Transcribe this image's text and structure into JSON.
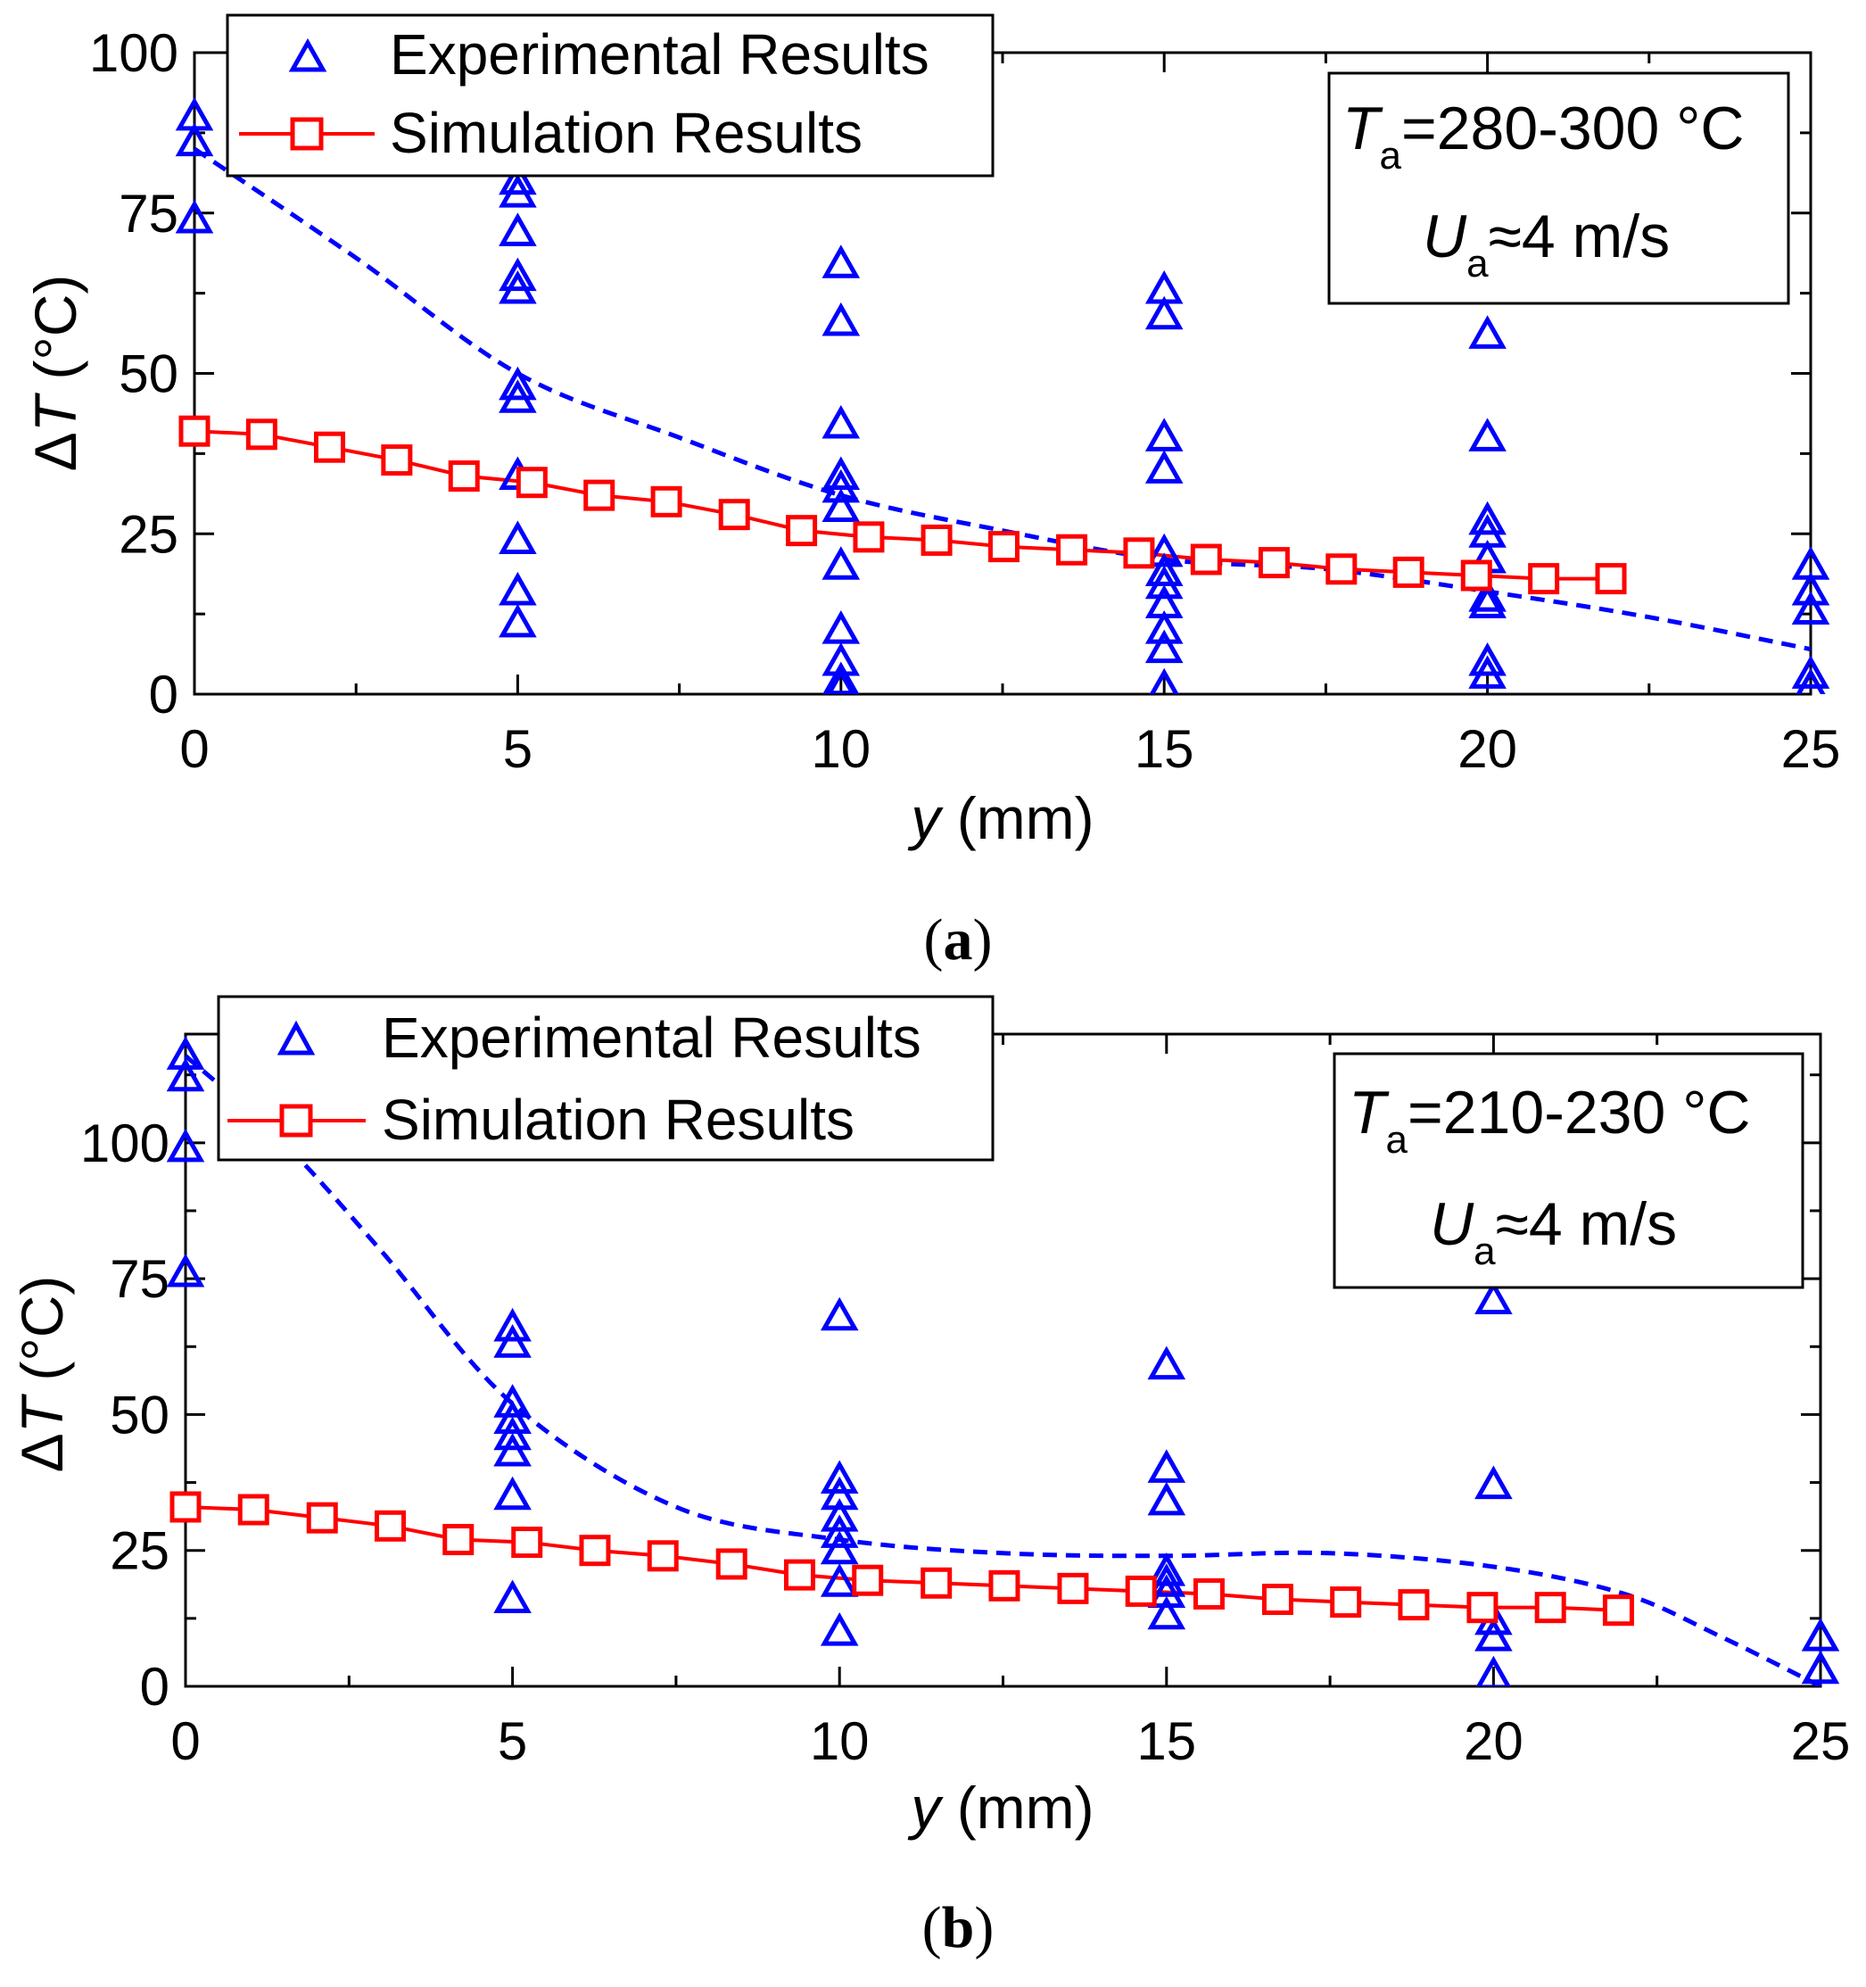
{
  "chart_data": [
    {
      "type": "scatter",
      "panel_label": "(a)",
      "panel_letter": "a",
      "xlabel_var": "y",
      "xlabel_unit": " (mm)",
      "ylabel_prefix": "Δ",
      "ylabel_var": "T",
      "ylabel_unit": " (°C)",
      "xlim": [
        0,
        25
      ],
      "ylim": [
        0,
        100
      ],
      "xticks": [
        0,
        5,
        10,
        15,
        20,
        25
      ],
      "yticks": [
        0,
        25,
        50,
        75,
        100
      ],
      "legend": {
        "position": "top-left",
        "experimental": "Experimental Results",
        "simulation": "Simulation Results"
      },
      "annotation": {
        "position": "top-right",
        "temp_var": "T",
        "temp_sub": "a",
        "temp_text": "=280-300 °C",
        "vel_var": "U",
        "vel_sub": "a",
        "vel_text": "≈4 m/s"
      },
      "series": [
        {
          "name": "Experimental Results",
          "marker": "triangle",
          "color": "#0000ff",
          "points": [
            [
              0,
              90
            ],
            [
              0,
              86
            ],
            [
              0,
              74
            ],
            [
              5,
              80
            ],
            [
              5,
              78
            ],
            [
              5,
              72
            ],
            [
              5,
              65
            ],
            [
              5,
              63
            ],
            [
              5,
              48
            ],
            [
              5,
              46
            ],
            [
              5,
              34
            ],
            [
              5,
              24
            ],
            [
              5,
              16
            ],
            [
              5,
              11
            ],
            [
              10,
              67
            ],
            [
              10,
              58
            ],
            [
              10,
              42
            ],
            [
              10,
              34
            ],
            [
              10,
              32
            ],
            [
              10,
              29
            ],
            [
              10,
              20
            ],
            [
              10,
              10
            ],
            [
              10,
              5
            ],
            [
              10,
              2
            ],
            [
              10,
              1
            ],
            [
              15,
              63
            ],
            [
              15,
              59
            ],
            [
              15,
              40
            ],
            [
              15,
              35
            ],
            [
              15,
              22
            ],
            [
              15,
              19
            ],
            [
              15,
              17
            ],
            [
              15,
              14
            ],
            [
              15,
              10
            ],
            [
              15,
              7
            ],
            [
              15,
              1
            ],
            [
              20,
              56
            ],
            [
              20,
              40
            ],
            [
              20,
              27
            ],
            [
              20,
              25
            ],
            [
              20,
              21
            ],
            [
              20,
              15
            ],
            [
              20,
              14
            ],
            [
              20,
              5
            ],
            [
              20,
              3
            ],
            [
              25,
              20
            ],
            [
              25,
              16
            ],
            [
              25,
              13
            ],
            [
              25,
              3
            ],
            [
              25,
              1
            ]
          ]
        },
        {
          "name": "Simulation Results",
          "marker": "square",
          "color": "#ff0000",
          "points": [
            [
              0,
              41
            ],
            [
              1.04,
              40.5
            ],
            [
              2.09,
              38.5
            ],
            [
              3.13,
              36.5
            ],
            [
              4.17,
              34
            ],
            [
              5.22,
              33
            ],
            [
              6.26,
              31
            ],
            [
              7.3,
              30
            ],
            [
              8.35,
              28
            ],
            [
              9.39,
              25.5
            ],
            [
              10.43,
              24.5
            ],
            [
              11.48,
              24
            ],
            [
              12.52,
              23
            ],
            [
              13.57,
              22.5
            ],
            [
              14.61,
              22
            ],
            [
              15.65,
              21
            ],
            [
              16.7,
              20.5
            ],
            [
              17.74,
              19.5
            ],
            [
              18.78,
              19
            ],
            [
              19.83,
              18.5
            ],
            [
              20.87,
              18
            ],
            [
              21.91,
              18
            ]
          ]
        },
        {
          "name": "Trend",
          "style": "dashed",
          "color": "#0000ff",
          "points": [
            [
              0,
              85
            ],
            [
              2.5,
              68
            ],
            [
              5,
              50
            ],
            [
              7.5,
              40
            ],
            [
              10,
              31
            ],
            [
              12.5,
              25.5
            ],
            [
              15,
              21
            ],
            [
              17.5,
              19.5
            ],
            [
              20,
              16
            ],
            [
              22.5,
              12
            ],
            [
              25,
              7
            ]
          ]
        }
      ]
    },
    {
      "type": "scatter",
      "panel_label": "(b)",
      "panel_letter": "b",
      "xlabel_var": "y",
      "xlabel_unit": " (mm)",
      "ylabel_prefix": "Δ",
      "ylabel_var": "T",
      "ylabel_unit": " (°C)",
      "xlim": [
        0,
        25
      ],
      "ylim": [
        0,
        120
      ],
      "xticks": [
        0,
        5,
        10,
        15,
        20,
        25
      ],
      "yticks": [
        0,
        25,
        50,
        75,
        100
      ],
      "legend": {
        "position": "top-left",
        "experimental": "Experimental Results",
        "simulation": "Simulation Results"
      },
      "annotation": {
        "position": "top-right",
        "temp_var": "T",
        "temp_sub": "a",
        "temp_text": "=210-230 °C",
        "vel_var": "U",
        "vel_sub": "a",
        "vel_text": "≈4 m/s"
      },
      "series": [
        {
          "name": "Experimental Results",
          "marker": "triangle",
          "color": "#0000ff",
          "points": [
            [
              0,
              116
            ],
            [
              0,
              112
            ],
            [
              0,
              99
            ],
            [
              0,
              76
            ],
            [
              5,
              66
            ],
            [
              5,
              63
            ],
            [
              5,
              52
            ],
            [
              5,
              49
            ],
            [
              5,
              46
            ],
            [
              5,
              43
            ],
            [
              5,
              35
            ],
            [
              5,
              16
            ],
            [
              10,
              68
            ],
            [
              10,
              38
            ],
            [
              10,
              35
            ],
            [
              10,
              31
            ],
            [
              10,
              28
            ],
            [
              10,
              25
            ],
            [
              10,
              19
            ],
            [
              10,
              10
            ],
            [
              15,
              59
            ],
            [
              15,
              40
            ],
            [
              15,
              34
            ],
            [
              15,
              21
            ],
            [
              15,
              19
            ],
            [
              15,
              17
            ],
            [
              15,
              13
            ],
            [
              20,
              71
            ],
            [
              20,
              37
            ],
            [
              20,
              12
            ],
            [
              20,
              9
            ],
            [
              20,
              2
            ],
            [
              25,
              9
            ],
            [
              25,
              3
            ]
          ]
        },
        {
          "name": "Simulation Results",
          "marker": "square",
          "color": "#ff0000",
          "points": [
            [
              0,
              33
            ],
            [
              1.04,
              32.5
            ],
            [
              2.09,
              31
            ],
            [
              3.13,
              29.5
            ],
            [
              4.17,
              27
            ],
            [
              5.22,
              26.5
            ],
            [
              6.26,
              25
            ],
            [
              7.3,
              24
            ],
            [
              8.35,
              22.5
            ],
            [
              9.39,
              20.5
            ],
            [
              10.43,
              19.5
            ],
            [
              11.48,
              19
            ],
            [
              12.52,
              18.5
            ],
            [
              13.57,
              18
            ],
            [
              14.61,
              17.5
            ],
            [
              15.65,
              17
            ],
            [
              16.7,
              16
            ],
            [
              17.74,
              15.5
            ],
            [
              18.78,
              15
            ],
            [
              19.83,
              14.5
            ],
            [
              20.87,
              14.5
            ],
            [
              21.91,
              14
            ]
          ]
        },
        {
          "name": "Trend",
          "style": "dashed",
          "color": "#0000ff",
          "points": [
            [
              0,
              116
            ],
            [
              1.5,
              100
            ],
            [
              3,
              80
            ],
            [
              5,
              52
            ],
            [
              7.5,
              33
            ],
            [
              10,
              27
            ],
            [
              12.5,
              24.5
            ],
            [
              15,
              24
            ],
            [
              17.5,
              24.5
            ],
            [
              20,
              22
            ],
            [
              22,
              17
            ],
            [
              23.5,
              9
            ],
            [
              25,
              0
            ]
          ]
        }
      ]
    }
  ]
}
